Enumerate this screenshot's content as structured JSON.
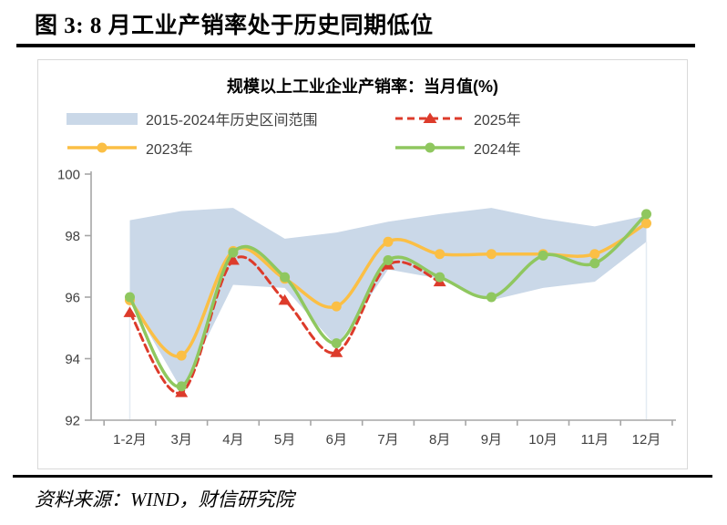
{
  "page": {
    "figure_title": "图 3: 8 月工业产销率处于历史同期低位",
    "source_note": "资料来源：WIND，财信研究院"
  },
  "chart_data": {
    "type": "line",
    "title": "规模以上工业企业产销率：当月值(%)",
    "categories": [
      "1-2月",
      "3月",
      "4月",
      "5月",
      "6月",
      "7月",
      "8月",
      "9月",
      "10月",
      "11月",
      "12月"
    ],
    "ylim": [
      92,
      100
    ],
    "yticks": [
      92,
      94,
      96,
      98,
      100
    ],
    "grid": false,
    "legend_position": "top",
    "band": {
      "name": "2015-2024年历史区间范围",
      "color": "#CAD8E8",
      "top": [
        98.5,
        98.8,
        98.9,
        97.9,
        98.1,
        98.45,
        98.7,
        98.9,
        98.55,
        98.3,
        98.65
      ],
      "bottom": [
        95.9,
        93.0,
        96.4,
        96.3,
        94.4,
        96.9,
        96.6,
        95.9,
        96.3,
        96.5,
        97.8
      ]
    },
    "series": [
      {
        "name": "2025年",
        "color": "#DD3B2B",
        "line": "dashed",
        "marker": "triangle",
        "values": [
          95.5,
          92.9,
          97.2,
          95.9,
          94.2,
          97.05,
          96.5
        ]
      },
      {
        "name": "2023年",
        "color": "#FBBF45",
        "line": "solid",
        "marker": "circle",
        "values": [
          95.9,
          94.1,
          97.5,
          96.6,
          95.7,
          97.8,
          97.4,
          97.4,
          97.4,
          97.4,
          98.4
        ]
      },
      {
        "name": "2024年",
        "color": "#8FC75F",
        "line": "solid",
        "marker": "circle",
        "values": [
          96.0,
          93.1,
          97.45,
          96.65,
          94.5,
          97.2,
          96.65,
          96.0,
          97.35,
          97.1,
          98.7
        ]
      }
    ],
    "axis_color": "#A6A6A6",
    "label_color": "#404040"
  }
}
